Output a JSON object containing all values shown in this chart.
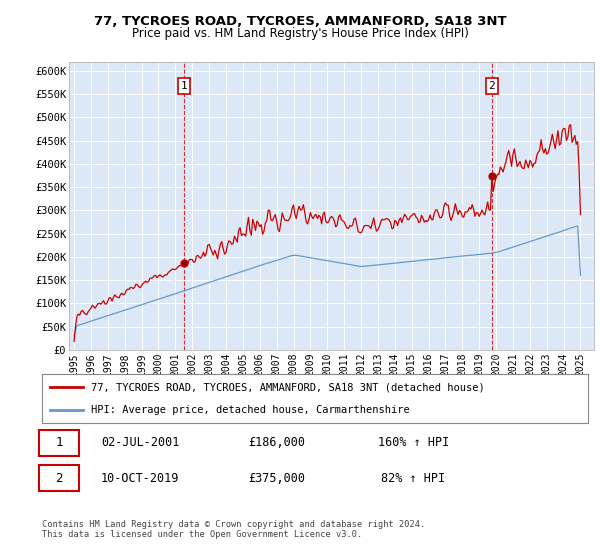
{
  "title1": "77, TYCROES ROAD, TYCROES, AMMANFORD, SA18 3NT",
  "title2": "Price paid vs. HM Land Registry's House Price Index (HPI)",
  "ylabel_ticks": [
    "£0",
    "£50K",
    "£100K",
    "£150K",
    "£200K",
    "£250K",
    "£300K",
    "£350K",
    "£400K",
    "£450K",
    "£500K",
    "£550K",
    "£600K"
  ],
  "ytick_values": [
    0,
    50000,
    100000,
    150000,
    200000,
    250000,
    300000,
    350000,
    400000,
    450000,
    500000,
    550000,
    600000
  ],
  "legend_line1": "77, TYCROES ROAD, TYCROES, AMMANFORD, SA18 3NT (detached house)",
  "legend_line2": "HPI: Average price, detached house, Carmarthenshire",
  "annotation1_date": "02-JUL-2001",
  "annotation1_price": "£186,000",
  "annotation1_hpi": "160% ↑ HPI",
  "annotation2_date": "10-OCT-2019",
  "annotation2_price": "£375,000",
  "annotation2_hpi": "82% ↑ HPI",
  "footer": "Contains HM Land Registry data © Crown copyright and database right 2024.\nThis data is licensed under the Open Government Licence v3.0.",
  "red_color": "#cc0000",
  "blue_color": "#6699cc",
  "plot_bg": "#dce8f5",
  "sale1_date": 2001.5,
  "sale1_price": 186000,
  "sale2_date": 2019.75,
  "sale2_price": 375000
}
